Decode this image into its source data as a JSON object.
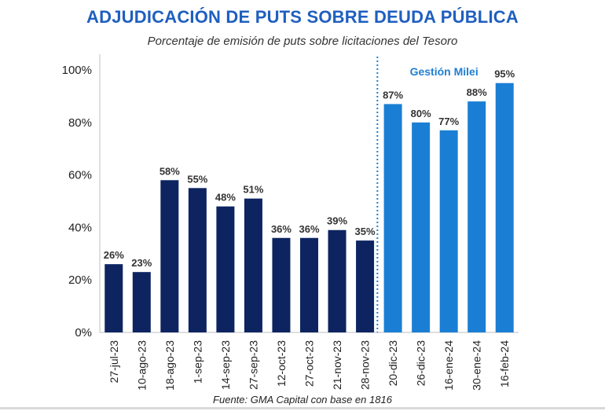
{
  "chart_data": {
    "type": "bar",
    "title": "ADJUDICACIÓN DE PUTS SOBRE DEUDA PÚBLICA",
    "subtitle": "Porcentaje de emisión de puts sobre licitaciones del Tesoro",
    "source": "Fuente: GMA Capital con base en 1816",
    "categories": [
      "27-jul-23",
      "10-ago-23",
      "18-ago-23",
      "1-sep-23",
      "14-sep-23",
      "27-sep-23",
      "12-oct-23",
      "27-oct-23",
      "21-nov-23",
      "28-nov-23",
      "20-dic-23",
      "26-dic-23",
      "16-ene-24",
      "30-ene-24",
      "16-feb-24"
    ],
    "values": [
      26,
      23,
      58,
      55,
      48,
      51,
      36,
      36,
      39,
      35,
      87,
      80,
      77,
      88,
      95
    ],
    "data_labels": [
      "26%",
      "23%",
      "58%",
      "55%",
      "48%",
      "51%",
      "36%",
      "36%",
      "39%",
      "35%",
      "87%",
      "80%",
      "77%",
      "88%",
      "95%"
    ],
    "ylim": [
      0,
      100
    ],
    "yticks": [
      "0%",
      "20%",
      "40%",
      "60%",
      "80%",
      "100%"
    ],
    "ytick_values": [
      0,
      20,
      40,
      60,
      80,
      100
    ],
    "grid": false,
    "colors": {
      "pre": "#0d2461",
      "milei": "#1a7fd4",
      "title": "#1f5fbf",
      "divider": "#1a7fd4"
    },
    "annotation": {
      "text": "Gestión Milei",
      "start_category": "20-dic-23"
    }
  }
}
